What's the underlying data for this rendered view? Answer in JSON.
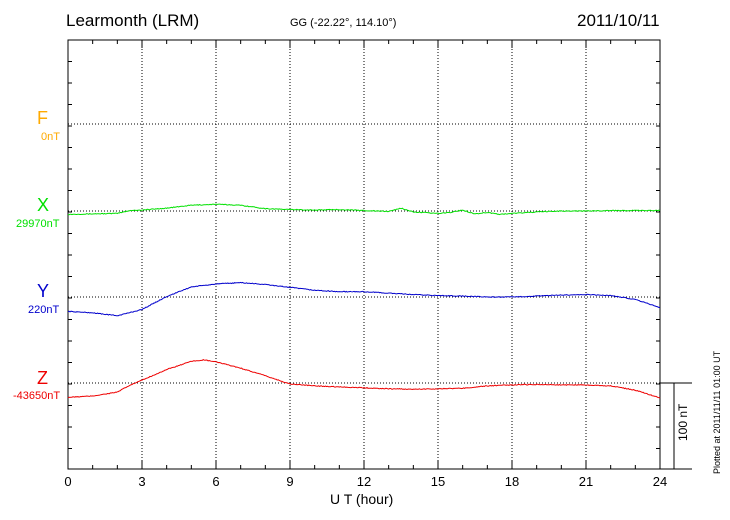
{
  "header": {
    "station": "Learmonth (LRM)",
    "coords": "GG (-22.22°, 114.10°)",
    "date": "2011/10/11"
  },
  "footer": {
    "plotted": "Plotted at 2011/11/11 01:00 UT",
    "scale_label": "100 nT"
  },
  "chart_data": {
    "type": "line",
    "title": "Learmonth (LRM)",
    "xlabel": "U T (hour)",
    "ylabel": "",
    "xlim": [
      0,
      24
    ],
    "x_ticks": [
      "0",
      "3",
      "6",
      "9",
      "12",
      "15",
      "18",
      "21",
      "24"
    ],
    "grid": true,
    "scale_bar_nT": 100,
    "series": [
      {
        "name": "F",
        "baseline_label": "0nT",
        "color": "#ffaa00",
        "x": [],
        "y": []
      },
      {
        "name": "X",
        "baseline_label": "29970nT",
        "color": "#00e000",
        "x": [
          0,
          1,
          2,
          2.5,
          3,
          4,
          5,
          6,
          7,
          8,
          9,
          10,
          11,
          12,
          13,
          13.5,
          14,
          15,
          15.5,
          16,
          16.5,
          17,
          17.5,
          18,
          19,
          20,
          21,
          22,
          23,
          24
        ],
        "y": [
          -7,
          -6,
          -5,
          1,
          2,
          6,
          12,
          14,
          12,
          5,
          3,
          2,
          3,
          1,
          -1,
          6,
          -2,
          -5,
          -3,
          2,
          -6,
          -3,
          -7,
          -5,
          -2,
          0,
          0,
          1,
          1,
          1
        ]
      },
      {
        "name": "Y",
        "baseline_label": "220nT",
        "color": "#0000cc",
        "x": [
          0,
          1,
          2,
          3,
          4,
          5,
          6,
          7,
          8,
          9,
          10,
          11,
          12,
          13,
          14,
          15,
          16,
          17,
          18,
          19,
          20,
          21,
          22,
          23,
          24
        ],
        "y": [
          -30,
          -33,
          -39,
          -26,
          1,
          21,
          27,
          30,
          26,
          20,
          14,
          11,
          11,
          8,
          5,
          3,
          2,
          0,
          0,
          2,
          4,
          5,
          3,
          -5,
          -22
        ]
      },
      {
        "name": "Z",
        "baseline_label": "-43650nT",
        "color": "#ee0000",
        "x": [
          0,
          1,
          2,
          2.5,
          3,
          4,
          5,
          5.5,
          6,
          7,
          8,
          9,
          10,
          11,
          12,
          13,
          14,
          15,
          16,
          17,
          18,
          19,
          20,
          21,
          22,
          23,
          24
        ],
        "y": [
          -30,
          -27,
          -19,
          -5,
          6,
          28,
          45,
          48,
          44,
          31,
          15,
          -2,
          -6,
          -8,
          -10,
          -12,
          -13,
          -12,
          -11,
          -6,
          -4,
          -3,
          -4,
          -4,
          -6,
          -15,
          -31
        ]
      }
    ]
  }
}
